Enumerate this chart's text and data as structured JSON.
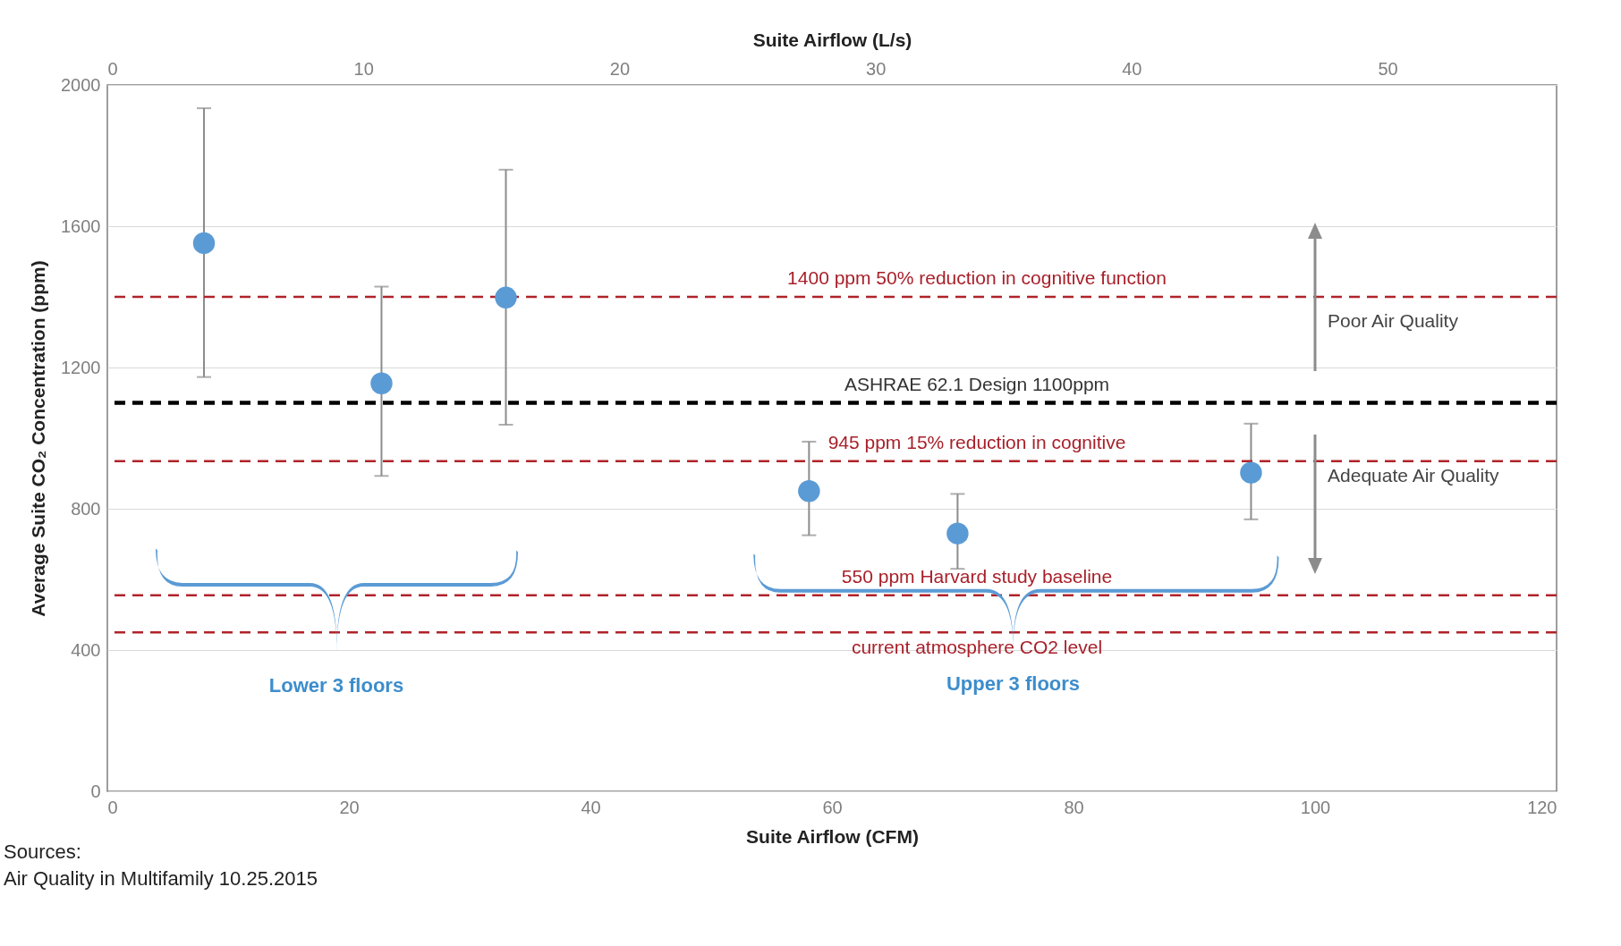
{
  "chart_data": {
    "type": "scatter",
    "xlabel": "Suite Airflow (CFM)",
    "x2label": "Suite Airflow  (L/s)",
    "ylabel": "Average Suite CO₂ Concentration (ppm)",
    "x": [
      8.0,
      22.7,
      33.0,
      58.1,
      70.4,
      94.7
    ],
    "series": [
      {
        "color": "#5b9bd5",
        "values": [
          1552,
          1155,
          1398,
          850,
          730,
          902
        ],
        "errors": [
          [
            1173,
            1934
          ],
          [
            893,
            1429
          ],
          [
            1038,
            1760
          ],
          [
            725,
            990
          ],
          [
            630,
            842
          ],
          [
            770,
            1041
          ]
        ]
      }
    ],
    "xlim": [
      0,
      120
    ],
    "xticks": [
      0,
      20,
      40,
      60,
      80,
      100,
      120
    ],
    "x2lim": [
      0,
      56.6
    ],
    "x2ticks": [
      0,
      10,
      20,
      30,
      40,
      50
    ],
    "ylim": [
      0,
      2000
    ],
    "yticks": [
      0,
      400,
      800,
      1200,
      1600,
      2000
    ],
    "grid": "y",
    "marker": "circle",
    "ref_lines": [
      {
        "axis": "y",
        "value": 1400,
        "label": "1400 ppm 50% reduction in cognitive function",
        "color": "#b0232a",
        "line_style": "dashed"
      },
      {
        "axis": "y",
        "value": 1100,
        "label": "ASHRAE 62.1 Design 1100ppm",
        "color": "#000000",
        "line_style": "dashed"
      },
      {
        "axis": "y",
        "value": 935,
        "label": "945 ppm  15% reduction in cognitive",
        "color": "#b0232a",
        "line_style": "dashed"
      },
      {
        "axis": "y",
        "value": 555,
        "label": "550 ppm Harvard study baseline",
        "color": "#b0232a",
        "line_style": "dashed"
      },
      {
        "axis": "y",
        "value": 450,
        "label": "current atmosphere CO2 level",
        "color": "#b0232a",
        "line_style": "dashed"
      }
    ],
    "annotations": [
      "Poor Air Quality",
      "Adequate Air Quality",
      "Lower 3 floors",
      "Upper 3 floors",
      "Sources:",
      "Air Quality in Multifamily 10.25.2015"
    ]
  }
}
